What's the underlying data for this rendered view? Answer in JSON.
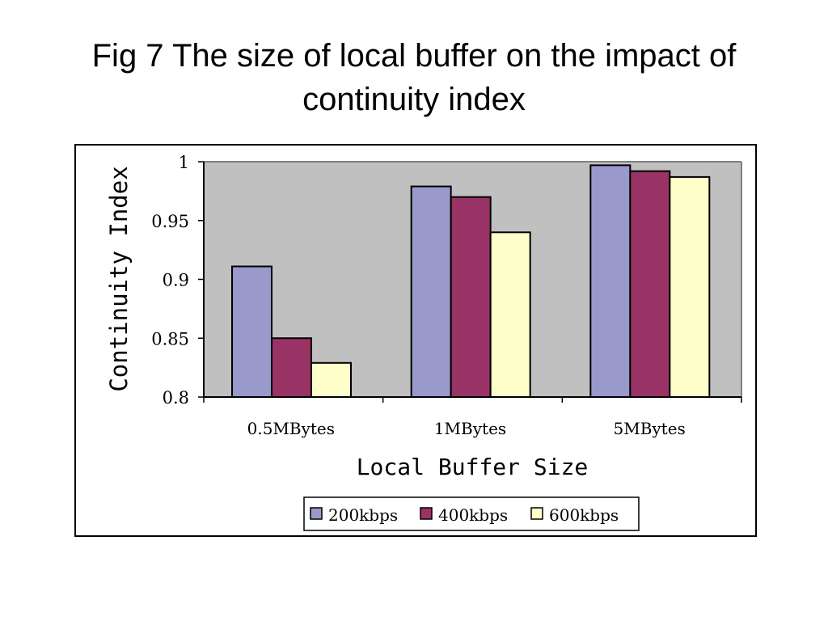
{
  "slide": {
    "title_line1": "Fig 7 The size of local buffer on the impact of",
    "title_line2": "continuity index"
  },
  "colors": {
    "plot_background": "#c0c0c0",
    "series_200": "#9999cc",
    "series_400": "#993366",
    "series_600": "#ffffcc"
  },
  "chart_data": {
    "type": "bar",
    "title": "",
    "xlabel": "Local Buffer Size",
    "ylabel": "Continuity Index",
    "categories": [
      "0.5MBytes",
      "1MBytes",
      "5MBytes"
    ],
    "series": [
      {
        "name": "200kbps",
        "values": [
          0.911,
          0.979,
          0.997
        ]
      },
      {
        "name": "400kbps",
        "values": [
          0.85,
          0.97,
          0.992
        ]
      },
      {
        "name": "600kbps",
        "values": [
          0.829,
          0.94,
          0.987
        ]
      }
    ],
    "ylim": [
      0.8,
      1.0
    ],
    "yticks": [
      "0.8",
      "0.85",
      "0.9",
      "0.95",
      "1"
    ],
    "grid": false,
    "legend_position": "bottom-center"
  }
}
